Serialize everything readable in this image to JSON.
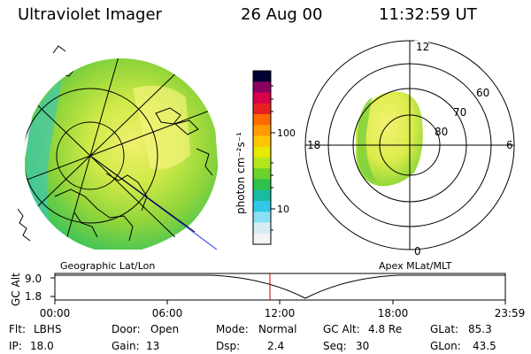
{
  "header": {
    "instrument": "Ultraviolet Imager",
    "date": "26 Aug 00",
    "time": "11:32:59 UT"
  },
  "colorbar": {
    "unit_label": "photon cm⁻²s⁻¹",
    "ticks": [
      "100",
      "10"
    ],
    "colors_top_to_bottom": [
      "#000033",
      "#8a0060",
      "#d8004a",
      "#e82020",
      "#ff6a00",
      "#ff9a00",
      "#ffc400",
      "#e8e800",
      "#b4e620",
      "#6ad22a",
      "#2cc24c",
      "#18bca0",
      "#30c8e6",
      "#8ae0f2",
      "#d8ecf4",
      "#f4f4f4"
    ]
  },
  "geo_panel": {
    "label": "Geographic Lat/Lon"
  },
  "polar_panel": {
    "label": "Apex MLat/MLT",
    "mlt_labels": {
      "top": "12",
      "bottom": "0",
      "left": "18",
      "right": "6"
    },
    "lat_labels": [
      "60",
      "70",
      "80"
    ]
  },
  "timeline": {
    "axis_label": "GC Alt",
    "y_ticks": [
      "9.0",
      "1.8"
    ],
    "x_ticks": [
      "00:00",
      "06:00",
      "12:00",
      "18:00",
      "23:59"
    ],
    "current_time_marker_color": "#cc0000"
  },
  "status": {
    "row1": [
      {
        "label": "Flt:",
        "value": "LBHS"
      },
      {
        "label": "Door:",
        "value": "Open"
      },
      {
        "label": "Mode:",
        "value": "Normal"
      },
      {
        "label": "GC Alt:",
        "value": "4.8 Re"
      },
      {
        "label": "GLat:",
        "value": "85.3"
      }
    ],
    "row2": [
      {
        "label": "IP:",
        "value": "18.0"
      },
      {
        "label": "Gain:",
        "value": "13"
      },
      {
        "label": "Dsp:",
        "value": "2.4"
      },
      {
        "label": "Seq:",
        "value": "30"
      },
      {
        "label": "GLon:",
        "value": "43.5"
      }
    ]
  }
}
